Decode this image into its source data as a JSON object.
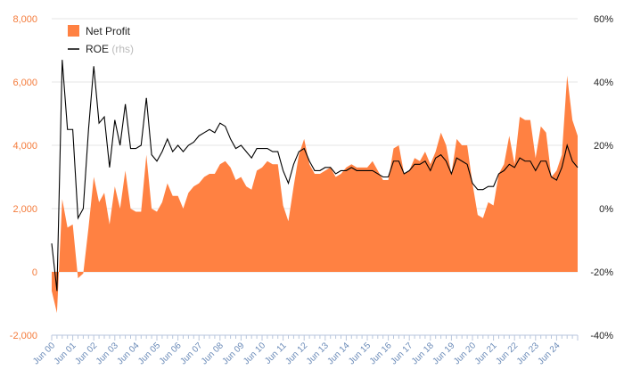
{
  "chart_data": {
    "type": "area",
    "x_tick_labels": [
      "Jun 00",
      "Jun 01",
      "Jun 02",
      "Jun 03",
      "Jun 04",
      "Jun 05",
      "Jun 06",
      "Jun 07",
      "Jun 08",
      "Jun 09",
      "Jun 10",
      "Jun 11",
      "Jun 12",
      "Jun 13",
      "Jun 14",
      "Jun 15",
      "Jun 16",
      "Jun 17",
      "Jun 18",
      "Jun 19",
      "Jun 20",
      "Jun 21",
      "Jun 22",
      "Jun 23",
      "Jun 24"
    ],
    "x_start": 2000.0,
    "x_step": 0.25,
    "y_left": {
      "min": -2000,
      "max": 8000,
      "ticks": [
        -2000,
        0,
        2000,
        4000,
        6000,
        8000
      ],
      "tick_labels": [
        "-2,000",
        "0",
        "2,000",
        "4,000",
        "6,000",
        "8,000"
      ]
    },
    "y_right": {
      "min": -40,
      "max": 60,
      "ticks": [
        -40,
        -20,
        0,
        20,
        40,
        60
      ],
      "tick_labels": [
        "-40%",
        "-20%",
        "0%",
        "20%",
        "40%",
        "60%"
      ]
    },
    "grid": true,
    "legend": {
      "placement": "top-left",
      "net_profit": "Net Profit",
      "roe": "ROE",
      "roe_suffix": "(rhs)"
    },
    "colors": {
      "net_profit": "#ff8142",
      "roe": "#000000",
      "left_axis": "#f47b3b",
      "x_axis": "#6b8bb8"
    },
    "series": [
      {
        "name": "Net Profit",
        "axis": "left",
        "values": [
          -600,
          -1300,
          2300,
          1400,
          1500,
          -200,
          -50,
          1400,
          3000,
          2200,
          2500,
          1500,
          2700,
          2000,
          3200,
          2000,
          1900,
          1900,
          3700,
          2000,
          1900,
          2200,
          2800,
          2400,
          2400,
          2000,
          2500,
          2700,
          2800,
          3000,
          3100,
          3100,
          3400,
          3500,
          3300,
          2900,
          3000,
          2700,
          2600,
          3200,
          3300,
          3500,
          3400,
          3400,
          2100,
          1600,
          2700,
          3700,
          4200,
          3400,
          3100,
          3100,
          3200,
          3300,
          3000,
          3100,
          3300,
          3400,
          3300,
          3300,
          3300,
          3500,
          3200,
          2900,
          2900,
          3900,
          4000,
          3100,
          3200,
          3600,
          3500,
          3800,
          3400,
          3800,
          4400,
          4000,
          3100,
          4200,
          4000,
          4000,
          2800,
          1800,
          1700,
          2200,
          2100,
          3100,
          3400,
          4300,
          3400,
          4900,
          4800,
          4800,
          3600,
          4600,
          4400,
          3000,
          3200,
          3700,
          6200,
          4800,
          4300
        ]
      },
      {
        "name": "ROE",
        "axis": "right",
        "values": [
          -11,
          -26,
          47,
          25,
          25,
          -3,
          0,
          25,
          45,
          27,
          29,
          13,
          28,
          20,
          33,
          19,
          19,
          20,
          35,
          17,
          15,
          18,
          22,
          18,
          20,
          18,
          20,
          21,
          23,
          24,
          25,
          24,
          27,
          26,
          22,
          19,
          20,
          18,
          16,
          19,
          19,
          19,
          18,
          18,
          12,
          8,
          14,
          18,
          19,
          15,
          12,
          12,
          13,
          13,
          11,
          12,
          12,
          13,
          12,
          12,
          12,
          12,
          11,
          10,
          10,
          15,
          15,
          11,
          12,
          14,
          14,
          15,
          12,
          16,
          17,
          15,
          11,
          16,
          15,
          14,
          8,
          6,
          6,
          7,
          7,
          11,
          12,
          14,
          13,
          16,
          15,
          15,
          12,
          15,
          15,
          10,
          9,
          13,
          20,
          15,
          13
        ]
      }
    ]
  }
}
